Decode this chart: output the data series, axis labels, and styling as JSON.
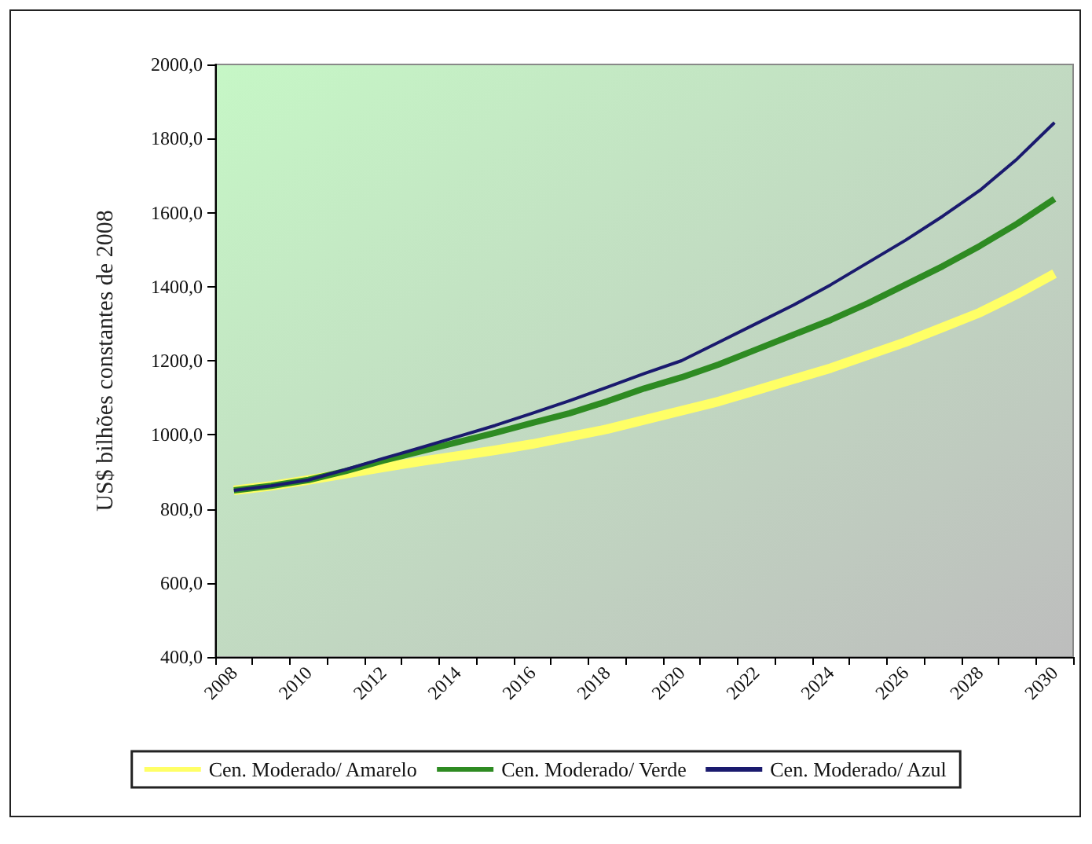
{
  "chart_data": {
    "type": "line",
    "ylabel": "US$ bilhões constantes de 2008",
    "categories": [
      "2008",
      null,
      "2010",
      null,
      "2012",
      null,
      "2014",
      null,
      "2016",
      null,
      "2018",
      null,
      "2020",
      null,
      "2022",
      null,
      "2024",
      null,
      "2026",
      null,
      "2028",
      null,
      "2030"
    ],
    "series": [
      {
        "name": "Cen. Moderado/ Amarelo",
        "color": "#ffff66",
        "values": [
          850,
          862,
          878,
          895,
          912,
          928,
          943,
          958,
          975,
          995,
          1015,
          1040,
          1065,
          1090,
          1120,
          1150,
          1180,
          1215,
          1250,
          1290,
          1330,
          1380,
          1435
        ]
      },
      {
        "name": "Cen. Moderado/ Verde",
        "color": "#2e8b22",
        "values": [
          850,
          862,
          878,
          902,
          930,
          955,
          980,
          1005,
          1032,
          1058,
          1090,
          1125,
          1155,
          1190,
          1230,
          1270,
          1310,
          1355,
          1405,
          1455,
          1510,
          1570,
          1637
        ]
      },
      {
        "name": "Cen. Moderado/ Azul",
        "color": "#1a1a6e",
        "values": [
          850,
          862,
          878,
          906,
          936,
          965,
          995,
          1025,
          1058,
          1092,
          1128,
          1165,
          1200,
          1250,
          1300,
          1350,
          1405,
          1465,
          1525,
          1590,
          1660,
          1745,
          1843
        ]
      }
    ],
    "ylim": [
      400,
      2000
    ],
    "yticks": [
      {
        "value": 400,
        "label": "400,0"
      },
      {
        "value": 600,
        "label": "600,0"
      },
      {
        "value": 800,
        "label": "800,0"
      },
      {
        "value": 1000,
        "label": "1000,0"
      },
      {
        "value": 1200,
        "label": "1200,0"
      },
      {
        "value": 1400,
        "label": "1400,0"
      },
      {
        "value": 1600,
        "label": "1600,0"
      },
      {
        "value": 1800,
        "label": "1800,0"
      },
      {
        "value": 2000,
        "label": "2000,0"
      }
    ],
    "grid": false,
    "legend": "bottom",
    "marker": "none",
    "line_style": "solid"
  }
}
